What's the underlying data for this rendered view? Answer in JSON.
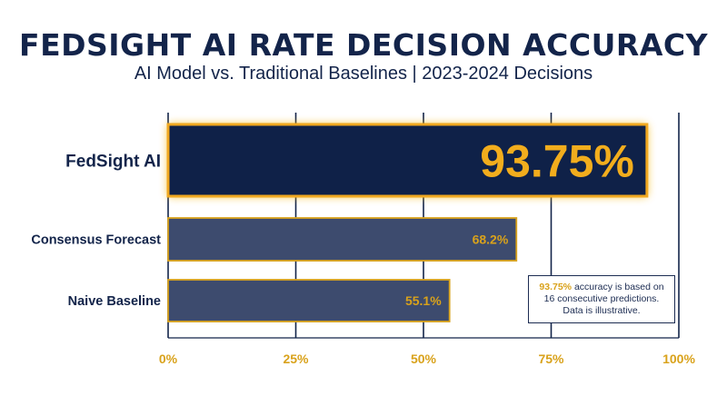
{
  "header": {
    "title": "FEDSIGHT AI RATE DECISION ACCURACY",
    "subtitle": "AI Model vs. Traditional Baselines | 2023-2024 Decisions"
  },
  "note": {
    "highlight": "93.75%",
    "text_1": " accuracy is based on",
    "text_2": "16 consecutive predictions.",
    "text_3": "Data is illustrative."
  },
  "colors": {
    "navy": "#13244a",
    "slate": "#3d4b6e",
    "gold": "#d9a21b",
    "highlight_bar": "#0f2148"
  },
  "chart_data": {
    "type": "bar",
    "orientation": "horizontal",
    "title": "FEDSIGHT AI RATE DECISION ACCURACY",
    "subtitle": "AI Model vs. Traditional Baselines | 2023-2024 Decisions",
    "categories": [
      "FedSight AI",
      "Consensus Forecast",
      "Naive Baseline"
    ],
    "values": [
      93.75,
      68.2,
      55.1
    ],
    "value_labels": [
      "93.75%",
      "68.2%",
      "55.1%"
    ],
    "highlighted_category": "FedSight AI",
    "xlim": [
      0,
      100
    ],
    "ticks": [
      0,
      25,
      50,
      75,
      100
    ],
    "tick_labels": [
      "0%",
      "25%",
      "50%",
      "75%",
      "100%"
    ],
    "grid": true
  }
}
